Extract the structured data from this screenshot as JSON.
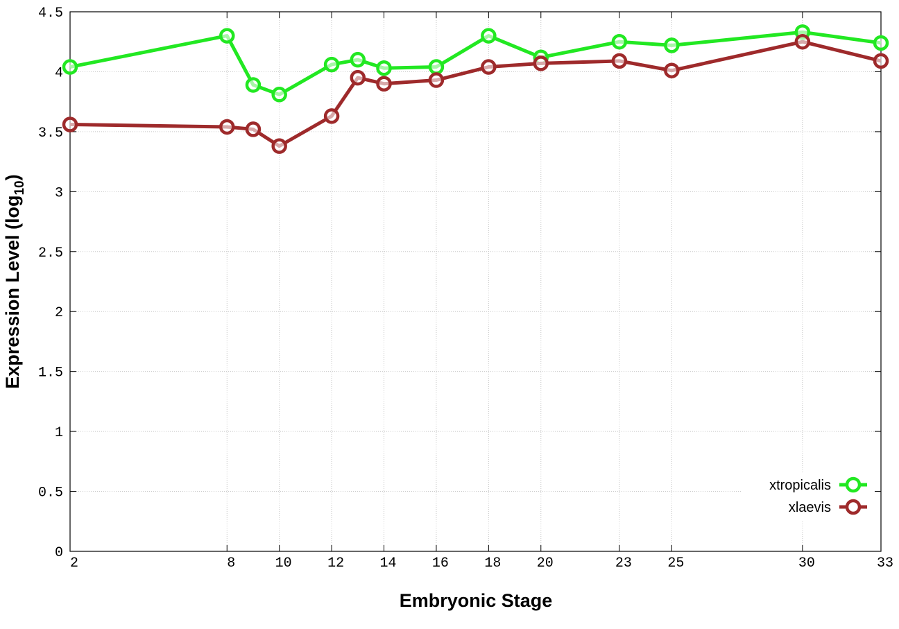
{
  "chart_data": {
    "type": "line",
    "xlabel": "Embryonic Stage",
    "ylabel_parts": [
      "Expression Level (log",
      "10",
      ")"
    ],
    "x": [
      2,
      8,
      9,
      10,
      12,
      13,
      14,
      16,
      18,
      20,
      23,
      25,
      30,
      33
    ],
    "series": [
      {
        "name": "xtropicalis",
        "color": "#22e822",
        "values": [
          4.04,
          4.3,
          3.89,
          3.81,
          4.06,
          4.1,
          4.03,
          4.04,
          4.3,
          4.12,
          4.25,
          4.22,
          4.33,
          4.24
        ]
      },
      {
        "name": "xlaevis",
        "color": "#9e2a2b",
        "values": [
          3.56,
          3.54,
          3.52,
          3.38,
          3.63,
          3.95,
          3.9,
          3.93,
          4.04,
          4.07,
          4.09,
          4.01,
          4.25,
          4.09
        ]
      }
    ],
    "xlim": [
      2,
      33
    ],
    "xticks": [
      2,
      8,
      10,
      12,
      14,
      16,
      18,
      20,
      23,
      25,
      30,
      33
    ],
    "ylim": [
      0,
      4.5
    ],
    "yticks": [
      0,
      0.5,
      1,
      1.5,
      2,
      2.5,
      3,
      3.5,
      4,
      4.5
    ],
    "grid": true,
    "legend": "bottom-right"
  }
}
